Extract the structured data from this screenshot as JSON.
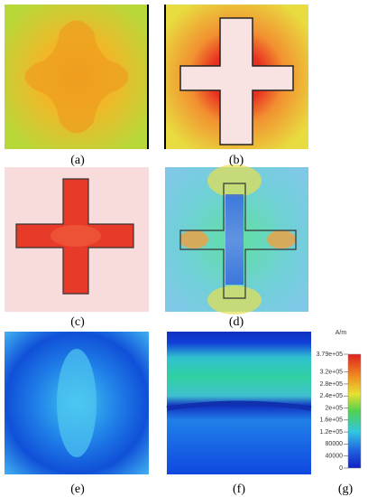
{
  "panels": [
    {
      "label": "(a)"
    },
    {
      "label": "(b)"
    },
    {
      "label": "(c)"
    },
    {
      "label": "(d)"
    },
    {
      "label": "(e)"
    },
    {
      "label": "(f)"
    },
    {
      "label": "(g)"
    }
  ],
  "colorbar": {
    "unit": "A/m",
    "ticks": [
      {
        "value": 379000,
        "label": "3.79e+05"
      },
      {
        "value": 320000,
        "label": "3.2e+05"
      },
      {
        "value": 280000,
        "label": "2.8e+05"
      },
      {
        "value": 240000,
        "label": "2.4e+05"
      },
      {
        "value": 200000,
        "label": "2e+05"
      },
      {
        "value": 160000,
        "label": "1.6e+05"
      },
      {
        "value": 120000,
        "label": "1.2e+05"
      },
      80000,
      40000,
      0
    ]
  }
}
